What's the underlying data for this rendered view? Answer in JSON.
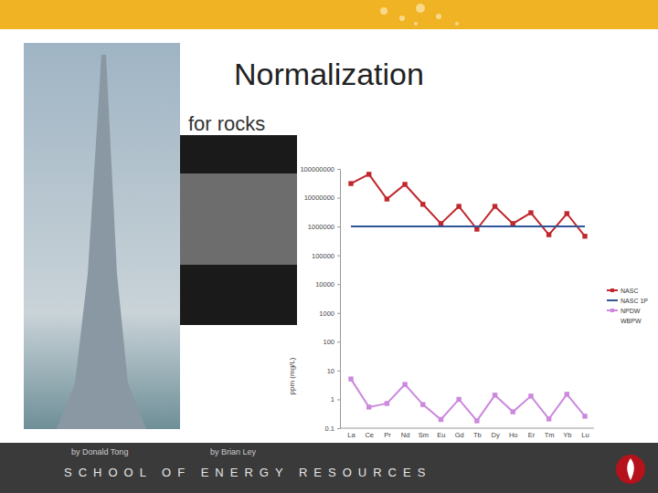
{
  "slide": {
    "title": "Normalization",
    "bullet": "for rocks",
    "credits": [
      "by Donald Tong",
      "by Brian Ley"
    ],
    "footer": "SCHOOL OF ENERGY RESOURCES"
  },
  "chart_data": {
    "type": "line",
    "categories": [
      "La",
      "Ce",
      "Pr",
      "Nd",
      "Sm",
      "Eu",
      "Gd",
      "Tb",
      "Dy",
      "Ho",
      "Er",
      "Tm",
      "Yb",
      "Lu"
    ],
    "y_label": "ppm (mg/L)",
    "log": "y",
    "ylim": [
      0.1,
      100000000
    ],
    "yticks": [
      0.1,
      1,
      10,
      100,
      1000,
      10000,
      100000,
      1000000,
      10000000,
      100000000
    ],
    "grid": false,
    "legend": "right",
    "series": [
      {
        "name": "NASC",
        "color": "#c0282d",
        "marker": "square",
        "line_style": "solid",
        "values": [
          31000000,
          65000000,
          9000000,
          29000000,
          5900000,
          1260000,
          5000000,
          810000,
          5000000,
          1260000,
          3000000,
          520000,
          2800000,
          460000
        ]
      },
      {
        "name": "NASC 1P",
        "color": "#2f5597",
        "marker": "none",
        "line_style": "solid",
        "values": [
          1000000,
          1000000,
          1000000,
          1000000,
          1000000,
          1000000,
          1000000,
          1000000,
          1000000,
          1000000,
          1000000,
          1000000,
          1000000,
          1000000
        ]
      },
      {
        "name": "NPDW",
        "color": "#cc88dd",
        "marker": "square",
        "line_style": "solid",
        "values": [
          5.1,
          0.54,
          0.72,
          3.3,
          0.66,
          0.2,
          1.0,
          0.18,
          1.4,
          0.37,
          1.3,
          0.21,
          1.5,
          0.26
        ]
      },
      {
        "name": "WBPW",
        "color": "#ffffff",
        "marker": "none",
        "line_style": "solid",
        "values": [
          null,
          null,
          null,
          null,
          null,
          null,
          null,
          null,
          null,
          null,
          null,
          null,
          null,
          null
        ]
      }
    ]
  }
}
